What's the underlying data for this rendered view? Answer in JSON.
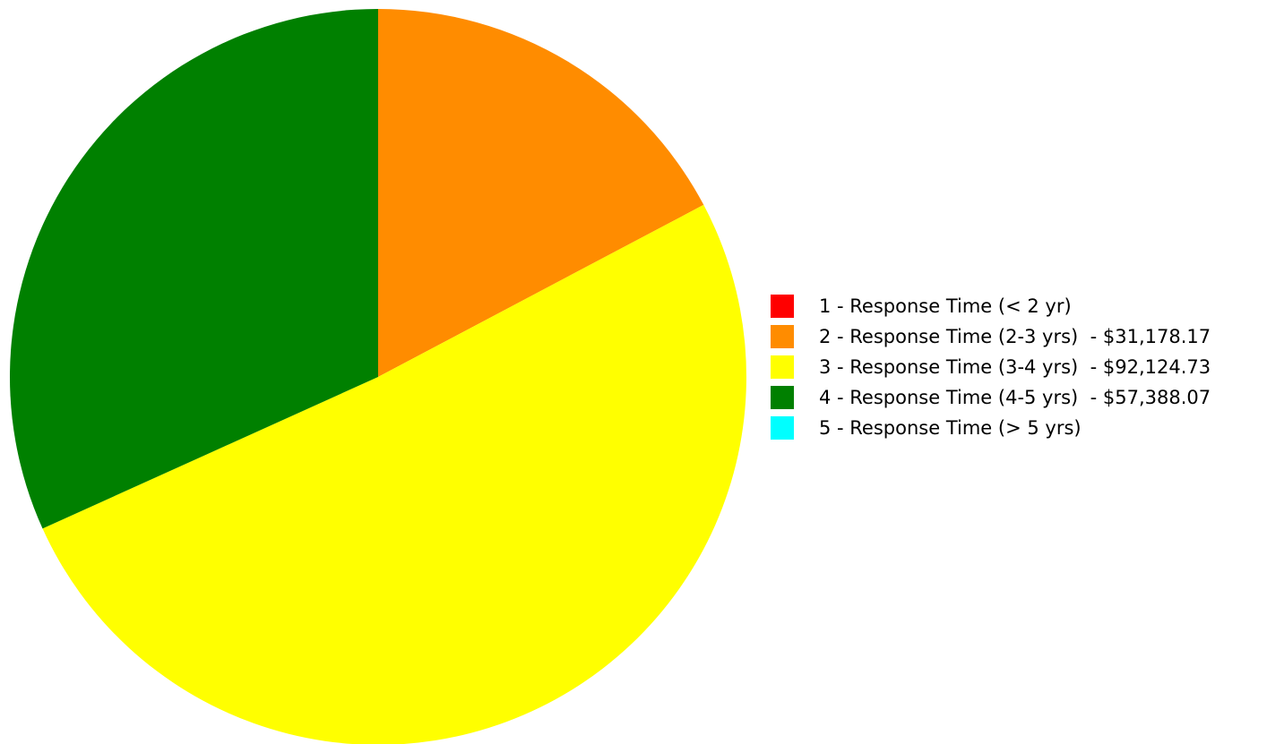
{
  "chart_data": {
    "type": "pie",
    "start_angle_deg": 0,
    "direction": "clockwise",
    "slices": [
      {
        "label": "1 - Response Time (< 2 yr)",
        "value": 0,
        "color": "#FF0000"
      },
      {
        "label": "2 - Response Time (2-3 yrs)",
        "value": 31178.17,
        "color": "#FF8C00"
      },
      {
        "label": "3 - Response Time (3-4 yrs)",
        "value": 92124.73,
        "color": "#FFFF00"
      },
      {
        "label": "4 - Response Time (4-5 yrs)",
        "value": 57388.07,
        "color": "#008000"
      },
      {
        "label": "5 - Response Time (> 5 yrs)",
        "value": 0,
        "color": "#00FFFF"
      }
    ],
    "legend": {
      "position": "right",
      "items": [
        "1 - Response Time (< 2 yr)",
        "2 - Response Time (2-3 yrs)  - $31,178.17",
        "3 - Response Time (3-4 yrs)  - $92,124.73",
        "4 - Response Time (4-5 yrs)  - $57,388.07",
        "5 - Response Time (> 5 yrs)"
      ]
    }
  }
}
